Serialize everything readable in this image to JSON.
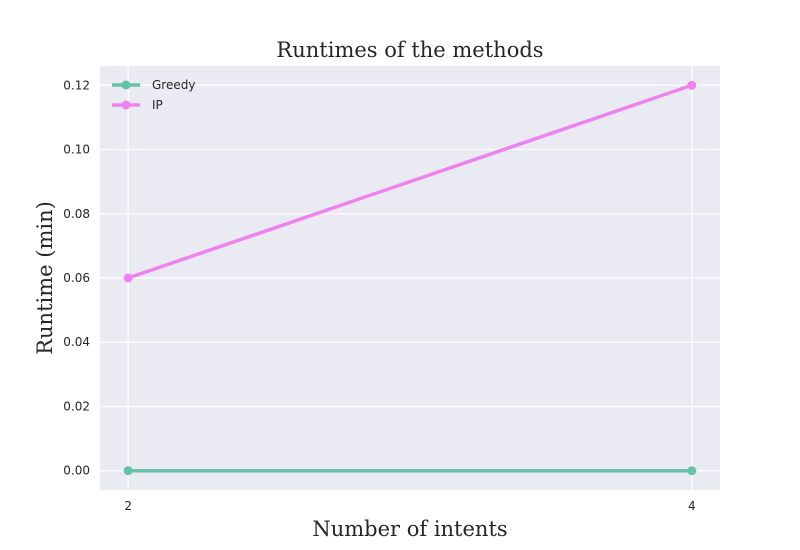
{
  "chart_data": {
    "type": "line",
    "title": "Runtimes of the methods",
    "xlabel": "Number of intents",
    "ylabel": "Runtime (min)",
    "x": [
      2,
      4
    ],
    "xticks": [
      "2",
      "4"
    ],
    "yticks": [
      "0.00",
      "0.02",
      "0.04",
      "0.06",
      "0.08",
      "0.10",
      "0.12"
    ],
    "ylim": [
      -0.006,
      0.126
    ],
    "xlim": [
      1.9,
      4.1
    ],
    "grid": true,
    "legend_position": "top-left",
    "series": [
      {
        "name": "Greedy",
        "values": [
          0.0,
          0.0
        ],
        "color": "#66c2a5"
      },
      {
        "name": "IP",
        "values": [
          0.06,
          0.12
        ],
        "color": "#ee82ee"
      }
    ],
    "background_color": "#eaeaf2",
    "grid_color": "#ffffff"
  }
}
